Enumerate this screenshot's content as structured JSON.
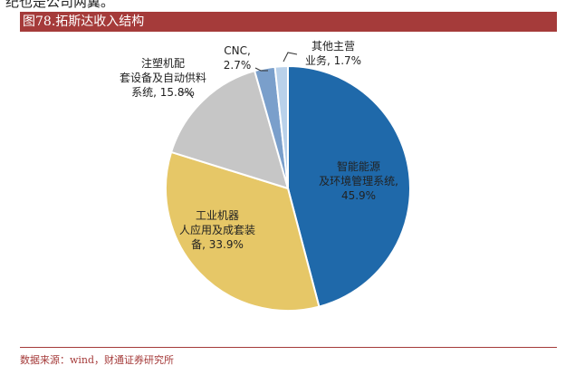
{
  "header_fragment": "纪也是公司两翼。",
  "figure_title": "图78.拓斯达收入结构",
  "source_note": "数据来源：wind，财通证券研究所",
  "chart_data": {
    "type": "pie",
    "title": "图78.拓斯达收入结构",
    "start_angle_deg": 0,
    "direction": "clockwise",
    "slices": [
      {
        "name": "智能能源及环境管理系统",
        "value": 45.9,
        "label_lines": [
          "智能能源",
          "及环境管理系统,",
          "45.9%"
        ],
        "color": "#1f69aa"
      },
      {
        "name": "工业机器人应用及成套装备",
        "value": 33.9,
        "label_lines": [
          "工业机器",
          "人应用及成套装",
          "备, 33.9%"
        ],
        "color": "#e6c767"
      },
      {
        "name": "注塑机配套设备及自动供料系统",
        "value": 15.8,
        "label_lines": [
          "注塑机配",
          "套设备及自动供料",
          "系统, 15.8%"
        ],
        "color": "#c6c6c6"
      },
      {
        "name": "CNC",
        "value": 2.7,
        "label_lines": [
          "CNC,",
          "2.7%"
        ],
        "color": "#7a9fcb"
      },
      {
        "name": "其他主营业务",
        "value": 1.7,
        "label_lines": [
          "其他主营",
          "业务, 1.7%"
        ],
        "color": "#b9d1ea"
      }
    ]
  }
}
